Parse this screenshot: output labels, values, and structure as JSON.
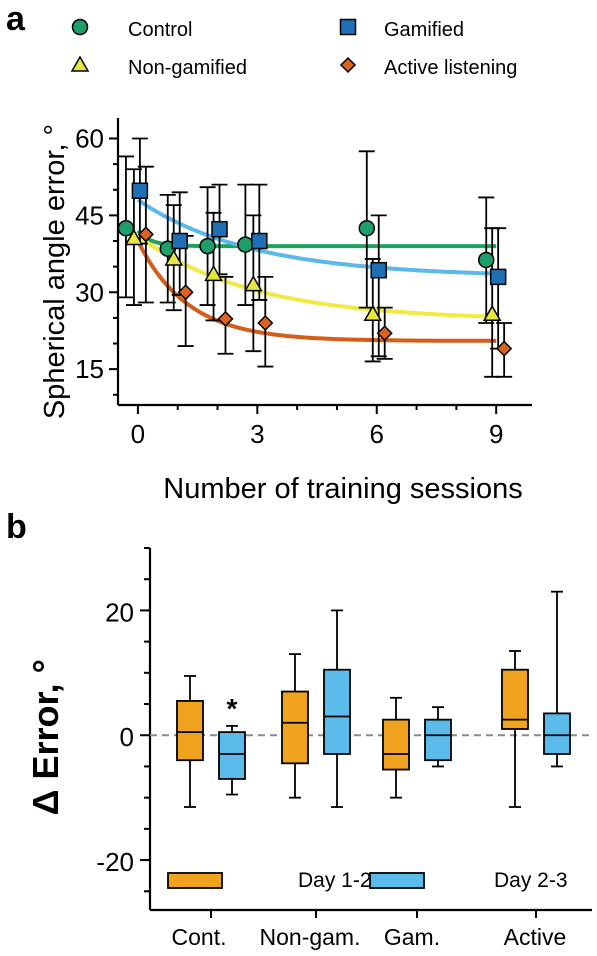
{
  "panel_a_letter": "a",
  "panel_b_letter": "b",
  "chart_data": [
    {
      "type": "scatter",
      "xlabel": "Number of training sessions",
      "ylabel": "Spherical angle error, °",
      "xlim": [
        -0.5,
        9.9
      ],
      "ylim": [
        8,
        64
      ],
      "xticks": [
        0,
        3,
        6,
        9
      ],
      "xtick_labels": [
        "0",
        "3",
        "6",
        "9"
      ],
      "yticks": [
        15,
        30,
        45,
        60
      ],
      "ytick_labels": [
        "15",
        "30",
        "45",
        "60"
      ],
      "legend_placement": "top, two columns",
      "series": [
        {
          "name": "Control",
          "marker": "circle",
          "color": "#1e9e6a",
          "fit_color": "#21a35d",
          "x": [
            -0.3,
            0.75,
            1.75,
            2.7,
            5.75,
            8.75
          ],
          "y": [
            42.5,
            38.5,
            39.0,
            39.3,
            42.5,
            36.3
          ],
          "err_low": [
            29.0,
            28.0,
            27.5,
            27.5,
            27.0,
            24.0
          ],
          "err_high": [
            56.5,
            49.0,
            50.5,
            51.0,
            57.5,
            48.5
          ],
          "fit": {
            "start": 42.0,
            "plateau": 39.0,
            "k": 3.0
          }
        },
        {
          "name": "Gamified",
          "marker": "square",
          "color": "#1f6fb4",
          "fit_color": "#5bb8ea",
          "x": [
            0.05,
            1.05,
            2.05,
            3.05,
            6.05,
            9.05
          ],
          "y": [
            49.8,
            40.0,
            42.3,
            40.0,
            34.3,
            33.0
          ],
          "err_low": [
            39.5,
            29.5,
            33.5,
            28.5,
            17.5,
            19.0
          ],
          "err_high": [
            60.0,
            49.5,
            51.0,
            51.0,
            45.0,
            42.5
          ],
          "fit": {
            "start": 48.0,
            "plateau": 33.0,
            "k": 0.35
          }
        },
        {
          "name": "Non-gamified",
          "marker": "triangle",
          "color": "#e7e63c",
          "fit_color": "#f2ea40",
          "x": [
            -0.1,
            0.9,
            1.9,
            2.9,
            5.9,
            8.9
          ],
          "y": [
            40.5,
            36.5,
            33.5,
            31.5,
            25.7,
            25.7
          ],
          "err_low": [
            27.5,
            26.5,
            24.5,
            18.5,
            16.5,
            13.5
          ],
          "err_high": [
            54.0,
            47.0,
            45.5,
            45.0,
            36.5,
            42.5
          ],
          "fit": {
            "start": 41.0,
            "plateau": 24.5,
            "k": 0.35
          }
        },
        {
          "name": "Active listening",
          "marker": "diamond",
          "color": "#d9641e",
          "fit_color": "#d35e1a",
          "x": [
            0.2,
            1.2,
            2.2,
            3.2,
            6.2,
            9.2
          ],
          "y": [
            41.3,
            30.0,
            24.8,
            24.0,
            22.0,
            19.0
          ],
          "err_low": [
            28.0,
            19.5,
            18.0,
            15.5,
            17.0,
            13.5
          ],
          "err_high": [
            54.5,
            41.0,
            33.0,
            33.0,
            27.0,
            24.0
          ],
          "fit": {
            "start": 40.0,
            "plateau": 20.5,
            "k": 0.8
          }
        }
      ]
    },
    {
      "type": "box",
      "ylabel": "Δ Error, °",
      "ylim": [
        -28,
        30
      ],
      "yticks": [
        -20,
        0,
        20
      ],
      "ytick_labels": [
        "-20",
        "0",
        "20"
      ],
      "reference_line": 0,
      "categories": [
        "Cont.",
        "Non-gam.",
        "Gam.",
        "Active"
      ],
      "annotation": "*",
      "annotation_category": "Cont.",
      "annotation_series": "Day 2-3",
      "legend_placement": "bottom",
      "series": [
        {
          "name": "Day 1-2",
          "color": "#f0a31e",
          "boxes": [
            {
              "min": -11.5,
              "q1": -4.0,
              "median": 0.5,
              "q3": 5.5,
              "max": 9.5
            },
            {
              "min": -10.0,
              "q1": -4.5,
              "median": 2.0,
              "q3": 7.0,
              "max": 13.0
            },
            {
              "min": -10.0,
              "q1": -5.5,
              "median": -3.0,
              "q3": 2.5,
              "max": 6.0
            },
            {
              "min": -11.5,
              "q1": 1.0,
              "median": 2.5,
              "q3": 10.5,
              "max": 13.5
            }
          ]
        },
        {
          "name": "Day 2-3",
          "color": "#5bbbea",
          "boxes": [
            {
              "min": -9.5,
              "q1": -7.0,
              "median": -3.0,
              "q3": 0.5,
              "max": 1.5
            },
            {
              "min": -11.5,
              "q1": -3.0,
              "median": 3.0,
              "q3": 10.5,
              "max": 20.0
            },
            {
              "min": -5.0,
              "q1": -4.0,
              "median": 0.0,
              "q3": 2.5,
              "max": 4.5
            },
            {
              "min": -5.0,
              "q1": -3.0,
              "median": 0.0,
              "q3": 3.5,
              "max": 23.0
            }
          ]
        }
      ]
    }
  ]
}
